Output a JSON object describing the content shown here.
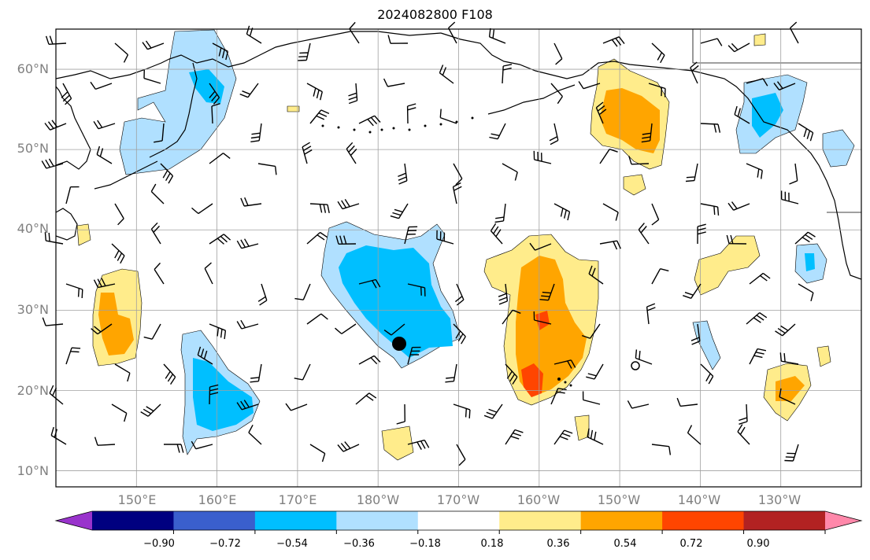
{
  "title": "2024082800 F108",
  "lat_labels": [
    "10°N",
    "20°N",
    "30°N",
    "40°N",
    "50°N",
    "60°N"
  ],
  "lon_labels": [
    "150°E",
    "160°E",
    "170°E",
    "180°W",
    "170°W",
    "160°W",
    "150°W",
    "140°W",
    "130°W"
  ],
  "colorbar": {
    "tick_labels": [
      "−0.90",
      "−0.72",
      "−0.54",
      "−0.36",
      "−0.18",
      "0.18",
      "0.36",
      "0.54",
      "0.72",
      "0.90"
    ],
    "colors": [
      "#9933cc",
      "#000080",
      "#3a5fcd",
      "#00bfff",
      "#b0e0ff",
      "#ffffff",
      "#ffec8b",
      "#ffa500",
      "#ff4500",
      "#b22222",
      "#ff88aa"
    ]
  },
  "map_extent": {
    "lon_min": 140,
    "lon_max": 240,
    "lat_min": 8,
    "lat_max": 65
  },
  "grid": true,
  "marker": {
    "lon": 183,
    "lat": 26
  }
}
